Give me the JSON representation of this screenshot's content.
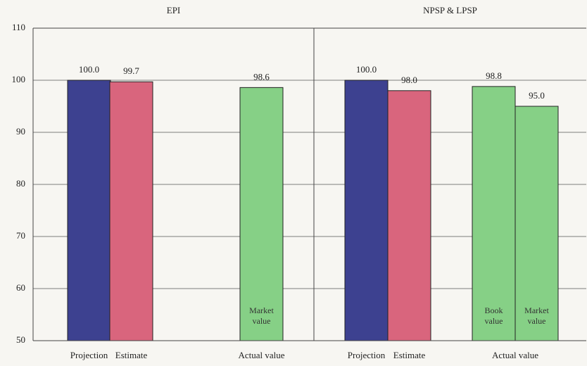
{
  "chart_data": [
    {
      "type": "bar",
      "title": "EPI",
      "ylim": [
        50,
        110
      ],
      "yticks": [
        50,
        60,
        70,
        80,
        90,
        100,
        110
      ],
      "grid": true,
      "categories": [
        {
          "label": "Projection",
          "bars": [
            {
              "value": 100,
              "value_label": "100.0",
              "color": "#3d4190"
            }
          ]
        },
        {
          "label": "Estimate",
          "bars": [
            {
              "value": 99.7,
              "value_label": "99.7",
              "color": "#d9657d"
            }
          ]
        },
        {
          "label": "Actual value",
          "bars": [
            {
              "name": "Market value",
              "value": 98.6,
              "value_label": "98.6",
              "color": "#86d086"
            }
          ]
        }
      ]
    },
    {
      "type": "bar",
      "title": "NPSP & LPSP",
      "ylim": [
        50,
        110
      ],
      "grid": true,
      "categories": [
        {
          "label": "Projection",
          "bars": [
            {
              "value": 100,
              "value_label": "100.0",
              "color": "#3d4190"
            }
          ]
        },
        {
          "label": "Estimate",
          "bars": [
            {
              "value": 98.0,
              "value_label": "98.0",
              "color": "#d9657d"
            }
          ]
        },
        {
          "label": "Actual value",
          "bars": [
            {
              "name": "Book value",
              "value": 98.8,
              "value_label": "98.8",
              "color": "#86d086"
            },
            {
              "name": "Market value",
              "value": 95.0,
              "value_label": "95.0",
              "color": "#86d086"
            }
          ]
        }
      ]
    }
  ]
}
